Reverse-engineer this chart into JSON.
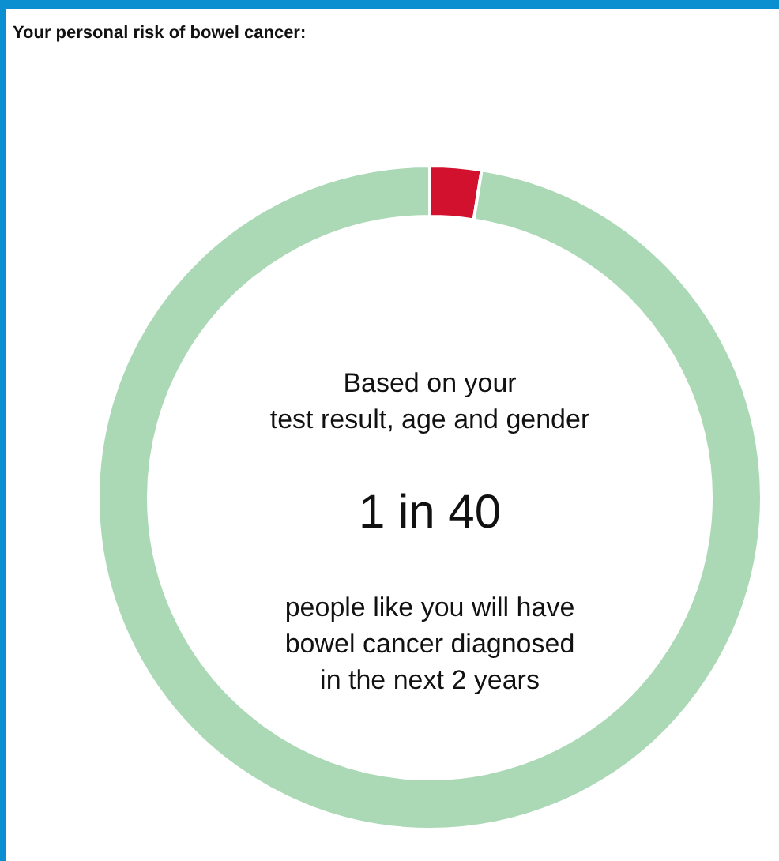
{
  "chart_data": {
    "type": "donut",
    "title": "Your personal risk of bowel cancer:",
    "categories": [
      null,
      null
    ],
    "values": [
      2.5,
      97.5
    ],
    "colors": [
      "#d2112e",
      "#abd9b6"
    ],
    "legend": false,
    "annotations": [
      "Based on your\ntest result, age and gender",
      "1 in 40",
      "people like you will have\nbowel cancer diagnosed\nin the next 2 years"
    ]
  }
}
